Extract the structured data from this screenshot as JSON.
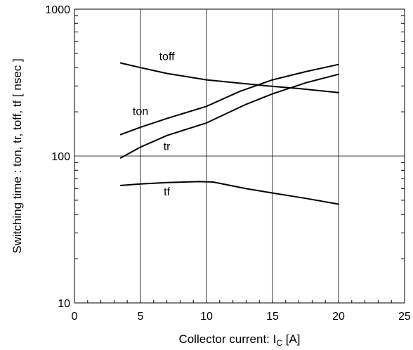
{
  "chart_data": {
    "type": "line",
    "title": "",
    "xlabel": "Collector current: I",
    "xlabel_sub": "C",
    "xlabel_unit": " [A]",
    "ylabel": "Switching time  :  ton, tr, toff, tf  [ nsec ]",
    "xlim": [
      0,
      25
    ],
    "ylim": [
      10,
      1000
    ],
    "yscale": "log",
    "grid": true,
    "x_ticks": [
      0,
      5,
      10,
      15,
      20,
      25
    ],
    "x_tick_labels": [
      "0",
      "5",
      "10",
      "15",
      "20",
      "25"
    ],
    "y_ticks": [
      10,
      100,
      1000
    ],
    "y_tick_labels": [
      "10",
      "100",
      "1000"
    ],
    "series": [
      {
        "name": "toff",
        "x": [
          3.5,
          5,
          7,
          10,
          13,
          15,
          17,
          20
        ],
        "y": [
          430,
          400,
          365,
          330,
          310,
          298,
          288,
          270
        ]
      },
      {
        "name": "ton",
        "x": [
          3.5,
          5,
          7,
          10,
          12.5,
          15,
          17.5,
          20
        ],
        "y": [
          140,
          157,
          180,
          218,
          275,
          330,
          375,
          420
        ]
      },
      {
        "name": "tr",
        "x": [
          3.5,
          5,
          7,
          10,
          13,
          15,
          17.5,
          20
        ],
        "y": [
          97,
          115,
          138,
          168,
          225,
          265,
          315,
          360
        ]
      },
      {
        "name": "tf",
        "x": [
          3.5,
          5,
          7,
          9.5,
          10.5,
          13,
          15,
          17.5,
          20
        ],
        "y": [
          63,
          64.5,
          66,
          67,
          66.5,
          60,
          56,
          51.5,
          47
        ]
      }
    ]
  }
}
